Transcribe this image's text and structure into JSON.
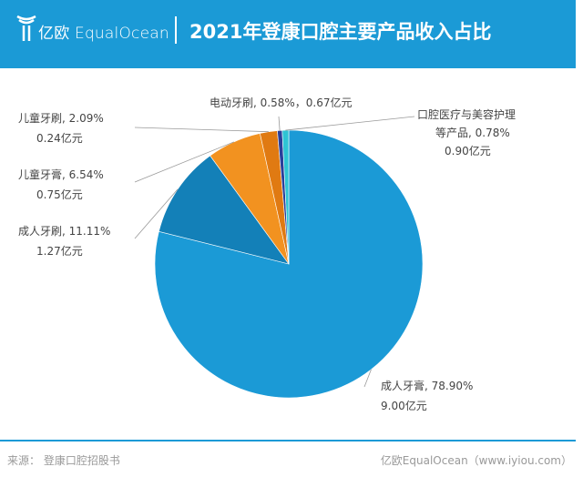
{
  "header": {
    "brand": "亿欧 EqualOcean",
    "title": "2021年登康口腔主要产品收入占比"
  },
  "chart_data": {
    "type": "pie",
    "title": "2021年登康口腔主要产品收入占比",
    "start": "12 o'clock, clockwise",
    "slices": [
      {
        "name": "成人牙膏",
        "percent": 78.9,
        "value": "9.00亿元",
        "color": "#1b9ad6"
      },
      {
        "name": "成人牙刷",
        "percent": 11.11,
        "value": "1.27亿元",
        "color": "#1380b8"
      },
      {
        "name": "儿童牙膏",
        "percent": 6.54,
        "value": "0.75亿元",
        "color": "#f29220"
      },
      {
        "name": "儿童牙刷",
        "percent": 2.09,
        "value": "0.24亿元",
        "color": "#e07a12"
      },
      {
        "name": "电动牙刷",
        "percent": 0.58,
        "value": "0.67亿元",
        "color": "#2a3f9a"
      },
      {
        "name": "口腔医疗与美容护理等产品",
        "percent": 0.78,
        "value": "0.90亿元",
        "color": "#2ec4d4"
      }
    ],
    "labels": [
      [
        "成人牙膏, 78.90%",
        "9.00亿元"
      ],
      [
        "成人牙刷, 11.11%",
        "1.27亿元"
      ],
      [
        "儿童牙膏, 6.54%",
        "0.75亿元"
      ],
      [
        "儿童牙刷, 2.09%",
        "0.24亿元"
      ],
      [
        "电动牙刷, 0.58%，0.67亿元"
      ],
      [
        "口腔医疗与美容护理",
        "等产品, 0.78%",
        "0.90亿元"
      ]
    ]
  },
  "footer": {
    "source": "来源：  登康口腔招股书",
    "site": "亿欧EqualOcean（www.iyiou.com）"
  }
}
